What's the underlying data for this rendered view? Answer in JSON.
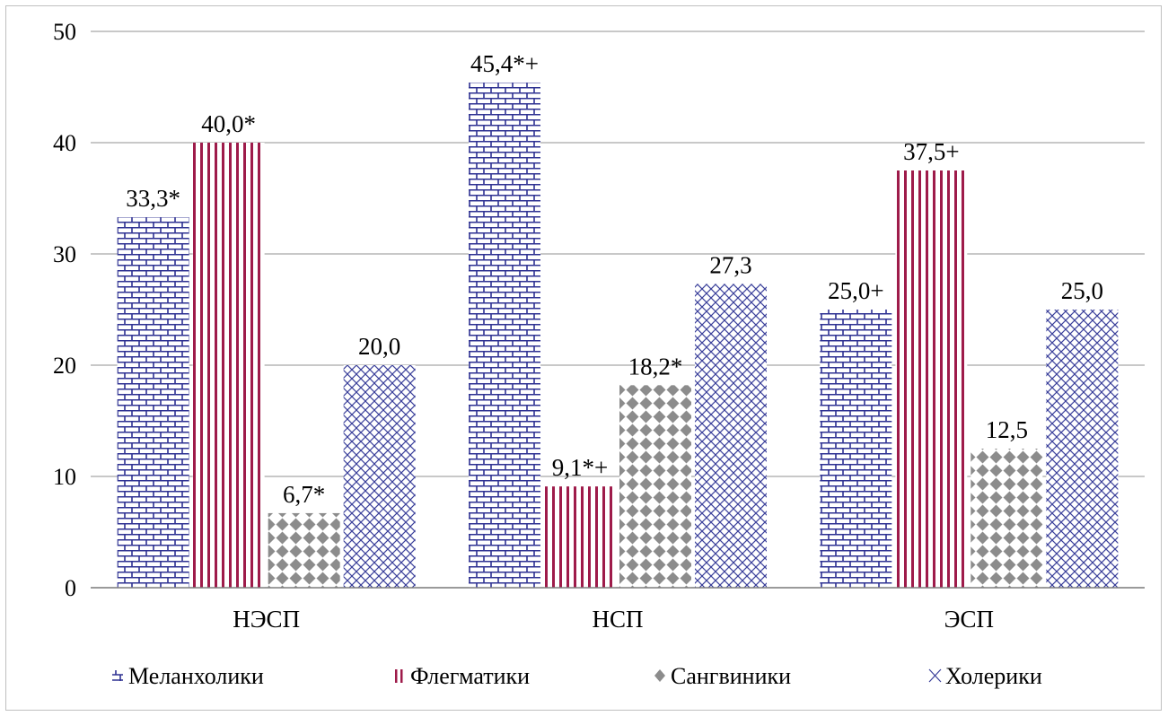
{
  "chart_data": {
    "type": "bar",
    "categories": [
      "НЭСП",
      "НСП",
      "ЭСП"
    ],
    "series": [
      {
        "name": "Меланхолики",
        "values": [
          33.3,
          45.4,
          25.0
        ],
        "labels": [
          "33,3*",
          "45,4*+",
          "25,0+"
        ],
        "color": "#2e3192",
        "pattern": "brick"
      },
      {
        "name": "Флегматики",
        "values": [
          40.0,
          9.1,
          37.5
        ],
        "labels": [
          "40,0*",
          "9,1*+",
          "37,5+"
        ],
        "color": "#9e1b4a",
        "pattern": "vertical-lines"
      },
      {
        "name": "Сангвиники",
        "values": [
          6.7,
          18.2,
          12.5
        ],
        "labels": [
          "6,7*",
          "18,2*",
          "12,5"
        ],
        "color": "#8c8c8c",
        "pattern": "diamonds"
      },
      {
        "name": "Холерики",
        "values": [
          20.0,
          27.3,
          25.0
        ],
        "labels": [
          "20,0",
          "27,3",
          "25,0"
        ],
        "color": "#3a3f9a",
        "pattern": "crosshatch"
      }
    ],
    "yticks": [
      "0",
      "10",
      "20",
      "30",
      "40",
      "50"
    ],
    "ylim": [
      0,
      50
    ],
    "grid": true,
    "legend": "bottom"
  }
}
